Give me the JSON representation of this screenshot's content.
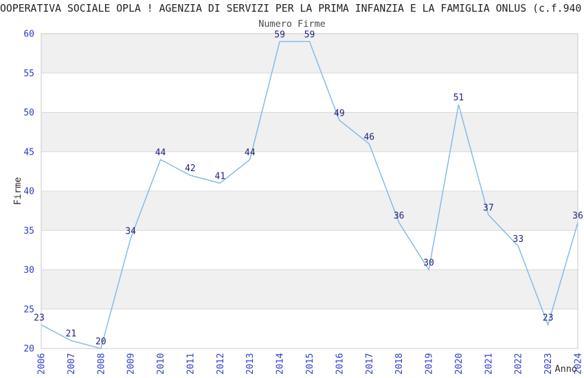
{
  "chart_data": {
    "type": "line",
    "title": "OOPERATIVA SOCIALE OPLA ! AGENZIA DI SERVIZI PER LA PRIMA INFANZIA E LA FAMIGLIA ONLUS (c.f.940",
    "subtitle": "Numero Firme",
    "xlabel": "Anno",
    "ylabel": "Firme",
    "x": [
      "2006",
      "2007",
      "2008",
      "2009",
      "2010",
      "2011",
      "2012",
      "2013",
      "2014",
      "2015",
      "2016",
      "2017",
      "2018",
      "2019",
      "2020",
      "2021",
      "2022",
      "2023",
      "2024"
    ],
    "values": [
      23,
      21,
      20,
      34,
      44,
      42,
      41,
      44,
      59,
      59,
      49,
      46,
      36,
      30,
      51,
      37,
      33,
      23,
      36
    ],
    "ylim": [
      20,
      60
    ],
    "yticks": [
      20,
      25,
      30,
      35,
      40,
      45,
      50,
      55,
      60
    ],
    "ytick_step": 5,
    "data_labels_visible": true,
    "legend": "none",
    "grid": "alternating-horizontal-bands",
    "x_tick_rotation_degrees": -90,
    "colors": {
      "line": "#7db7e8",
      "point_label": "#22227e",
      "tick_label": "#2c3bcd",
      "band": "#f0f0f0",
      "grid_line": "#d8d8d8",
      "plot_border": "#c8c8c8",
      "title": "#1f1f1f",
      "subtitle": "#4a4a4a",
      "axis_title": "#2b2b2b"
    }
  }
}
